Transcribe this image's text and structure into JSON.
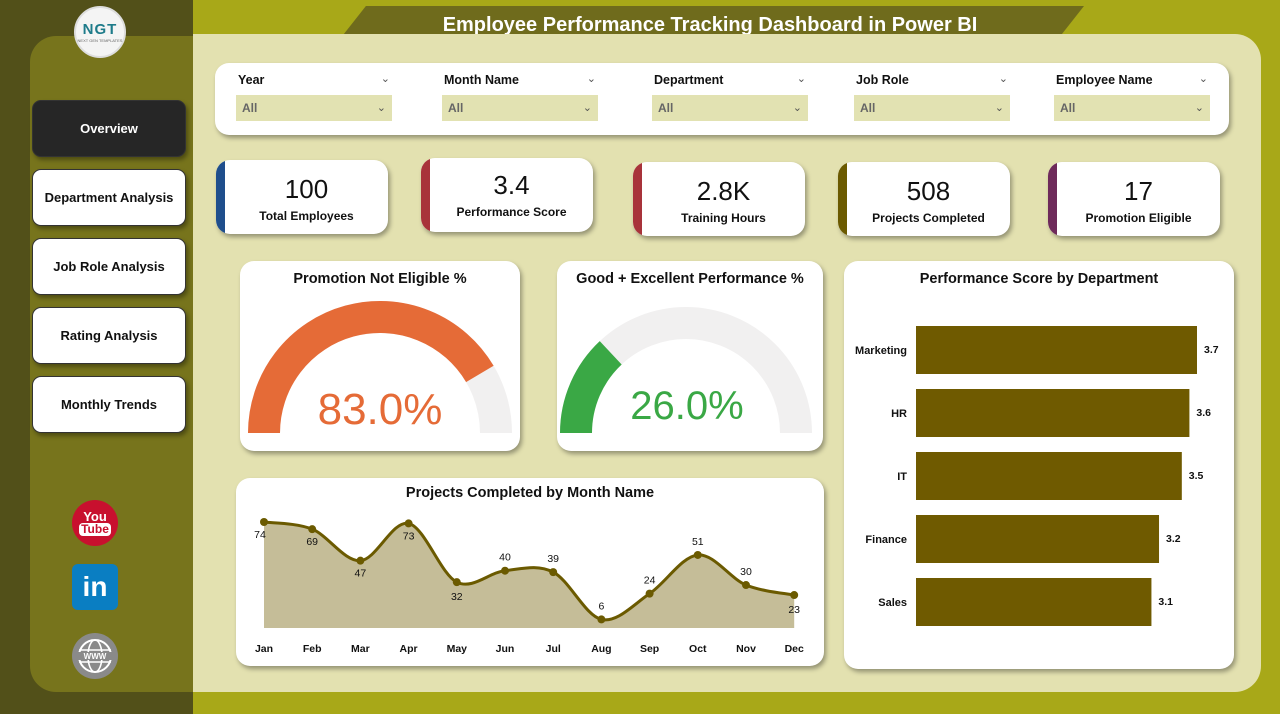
{
  "header": {
    "title": "Employee Performance Tracking Dashboard in Power BI"
  },
  "logo": {
    "text": "NGT",
    "subtext": "NEXT GEN TEMPLATES"
  },
  "nav": [
    {
      "label": "Overview",
      "active": true
    },
    {
      "label": "Department Analysis",
      "active": false
    },
    {
      "label": "Job Role Analysis",
      "active": false
    },
    {
      "label": "Rating Analysis",
      "active": false
    },
    {
      "label": "Monthly Trends",
      "active": false
    }
  ],
  "social": [
    {
      "icon": "youtube-icon",
      "text": "You",
      "text2": "Tube"
    },
    {
      "icon": "linkedin-icon",
      "text": "in"
    },
    {
      "icon": "web-globe-icon",
      "text": "WWW"
    }
  ],
  "filters": [
    {
      "label": "Year",
      "value": "All"
    },
    {
      "label": "Month Name",
      "value": "All"
    },
    {
      "label": "Department",
      "value": "All"
    },
    {
      "label": "Job Role",
      "value": "All"
    },
    {
      "label": "Employee Name",
      "value": "All"
    }
  ],
  "kpis": [
    {
      "value": "100",
      "label": "Total Employees",
      "color": "#1f4e8c"
    },
    {
      "value": "3.4",
      "label": "Performance Score",
      "color": "#a8333a"
    },
    {
      "value": "2.8K",
      "label": "Training Hours",
      "color": "#a8333a"
    },
    {
      "value": "508",
      "label": "Projects Completed",
      "color": "#6b5a00"
    },
    {
      "value": "17",
      "label": "Promotion Eligible",
      "color": "#6e2a5a"
    }
  ],
  "gauges": [
    {
      "title": "Promotion Not Eligible %",
      "value_label": "83.0%",
      "fraction": 0.83,
      "color": "#e56b37"
    },
    {
      "title": "Good + Excellent Performance %",
      "value_label": "26.0%",
      "fraction": 0.26,
      "color": "#3aa845"
    }
  ],
  "colors": {
    "gauge_track": "#f1f0f0",
    "bar": "#6f5a00",
    "line": "#6b5a00",
    "area": "#c5bd98"
  },
  "chart_data": [
    {
      "type": "bar",
      "title": "Performance Score by Department",
      "categories": [
        "Marketing",
        "HR",
        "IT",
        "Finance",
        "Sales"
      ],
      "values": [
        3.7,
        3.6,
        3.5,
        3.2,
        3.1
      ],
      "xlim": [
        0,
        3.7
      ],
      "grid": false
    },
    {
      "type": "area",
      "title": "Projects Completed by Month Name",
      "categories": [
        "Jan",
        "Feb",
        "Mar",
        "Apr",
        "May",
        "Jun",
        "Jul",
        "Aug",
        "Sep",
        "Oct",
        "Nov",
        "Dec"
      ],
      "values": [
        74,
        69,
        47,
        73,
        32,
        40,
        39,
        6,
        24,
        51,
        30,
        23
      ],
      "ylim": [
        0,
        74
      ],
      "grid": false
    }
  ]
}
